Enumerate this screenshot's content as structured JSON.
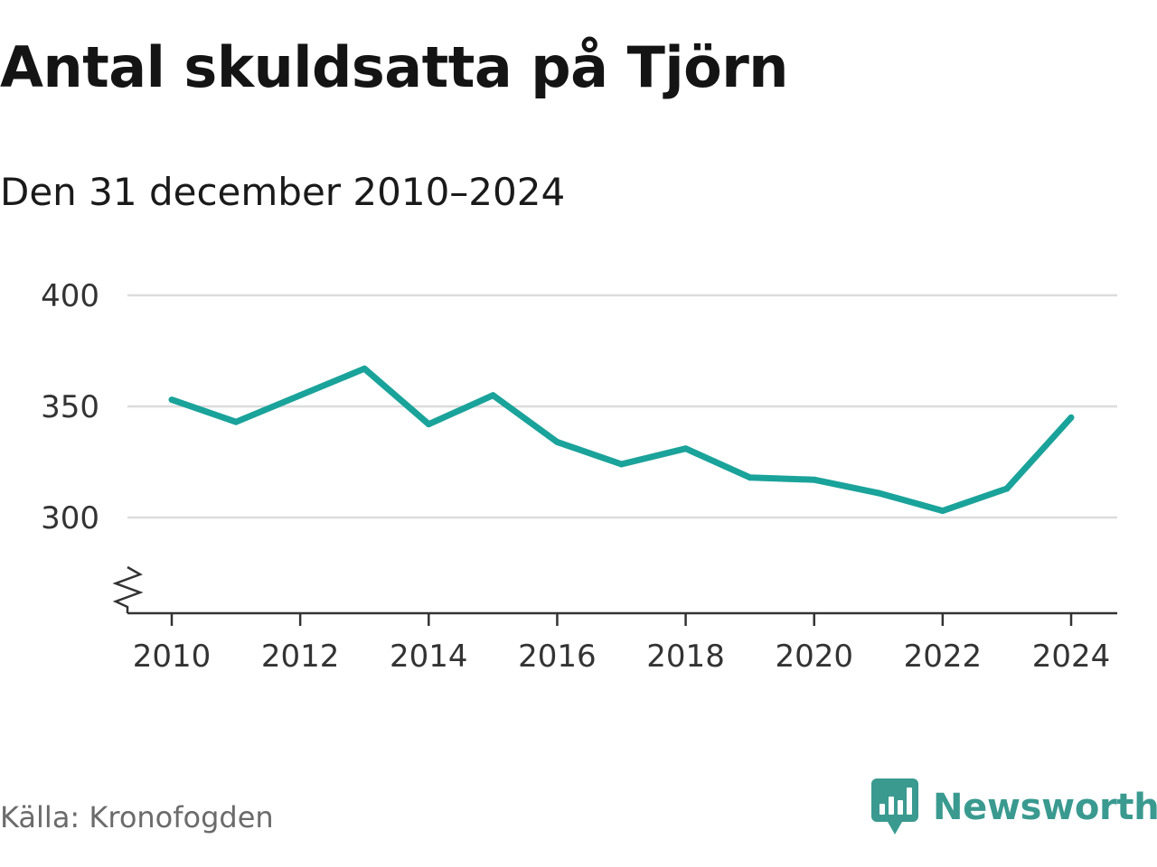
{
  "header": {
    "title": "Antal skuldsatta på Tjörn",
    "subtitle": "Den 31 december 2010–2024"
  },
  "footer": {
    "source": "Källa: Kronofogden",
    "brand": "Newsworthy"
  },
  "colors": {
    "line": "#1aa39a",
    "grid": "#dcdcdc",
    "axis": "#333333",
    "brand": "#3a9a90"
  },
  "chart_data": {
    "type": "line",
    "title": "Antal skuldsatta på Tjörn",
    "subtitle": "Den 31 december 2010–2024",
    "xlabel": "",
    "ylabel": "",
    "x": [
      2010,
      2011,
      2012,
      2013,
      2014,
      2015,
      2016,
      2017,
      2018,
      2019,
      2020,
      2021,
      2022,
      2023,
      2024
    ],
    "series": [
      {
        "name": "Antal skuldsatta",
        "values": [
          353,
          343,
          355,
          367,
          342,
          355,
          334,
          324,
          331,
          318,
          317,
          311,
          303,
          313,
          345
        ]
      }
    ],
    "xlim": [
      2010,
      2024
    ],
    "ylim": [
      300,
      400
    ],
    "yticks": [
      300,
      350,
      400
    ],
    "xticks": [
      2010,
      2012,
      2014,
      2016,
      2018,
      2020,
      2022,
      2024
    ],
    "y_axis_break": true,
    "grid": true,
    "legend": "none"
  }
}
